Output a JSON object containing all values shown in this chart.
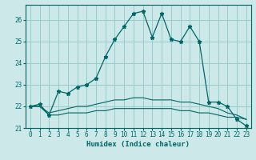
{
  "xlabel": "Humidex (Indice chaleur)",
  "background_color": "#cce8e8",
  "grid_color": "#99cccc",
  "line_color": "#006666",
  "xlim": [
    -0.5,
    23.5
  ],
  "ylim": [
    21.0,
    26.7
  ],
  "xticks": [
    0,
    1,
    2,
    3,
    4,
    5,
    6,
    7,
    8,
    9,
    10,
    11,
    12,
    13,
    14,
    15,
    16,
    17,
    18,
    19,
    20,
    21,
    22,
    23
  ],
  "yticks": [
    21,
    22,
    23,
    24,
    25,
    26
  ],
  "series1": [
    22.0,
    22.1,
    21.6,
    22.7,
    22.6,
    22.9,
    23.0,
    23.3,
    24.3,
    25.1,
    25.7,
    26.3,
    26.4,
    25.2,
    26.3,
    25.1,
    25.0,
    25.7,
    25.0,
    22.2,
    22.2,
    22.0,
    21.4,
    21.1
  ],
  "series2": [
    22.0,
    22.0,
    21.7,
    21.8,
    21.9,
    22.0,
    22.0,
    22.1,
    22.2,
    22.3,
    22.3,
    22.4,
    22.4,
    22.3,
    22.3,
    22.3,
    22.2,
    22.2,
    22.1,
    22.0,
    21.9,
    21.7,
    21.6,
    21.4
  ],
  "series3": [
    22.0,
    22.0,
    21.6,
    21.6,
    21.7,
    21.7,
    21.7,
    21.8,
    21.8,
    21.9,
    21.9,
    21.9,
    21.9,
    21.9,
    21.9,
    21.9,
    21.8,
    21.8,
    21.7,
    21.7,
    21.6,
    21.5,
    21.5,
    21.4
  ]
}
